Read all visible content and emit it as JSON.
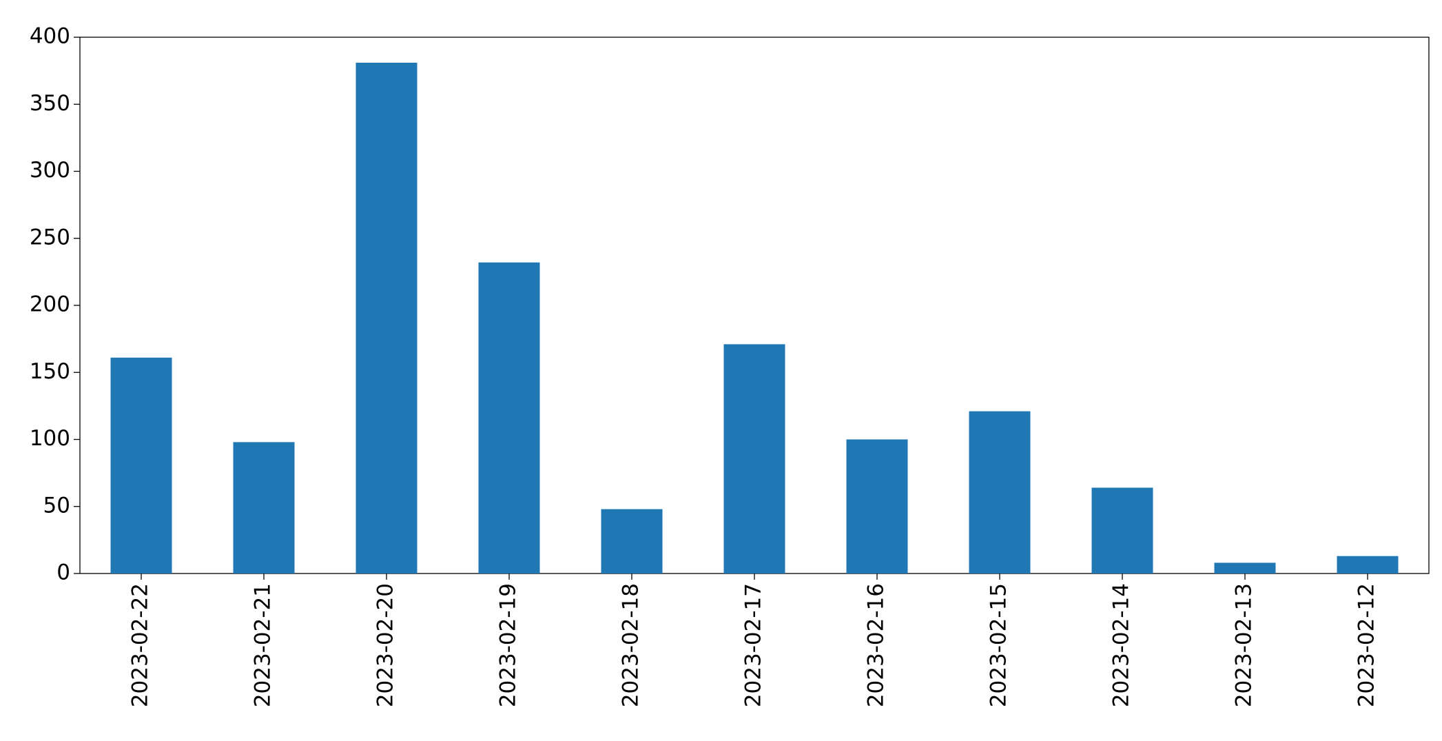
{
  "chart_data": {
    "type": "bar",
    "categories": [
      "2023-02-22",
      "2023-02-21",
      "2023-02-20",
      "2023-02-19",
      "2023-02-18",
      "2023-02-17",
      "2023-02-16",
      "2023-02-15",
      "2023-02-14",
      "2023-02-13",
      "2023-02-12"
    ],
    "values": [
      161,
      98,
      381,
      232,
      48,
      171,
      100,
      121,
      64,
      8,
      13
    ],
    "color": "#1f77b4",
    "ylim": [
      0,
      400
    ],
    "yticks": [
      0,
      50,
      100,
      150,
      200,
      250,
      300,
      350,
      400
    ],
    "grid": false
  }
}
